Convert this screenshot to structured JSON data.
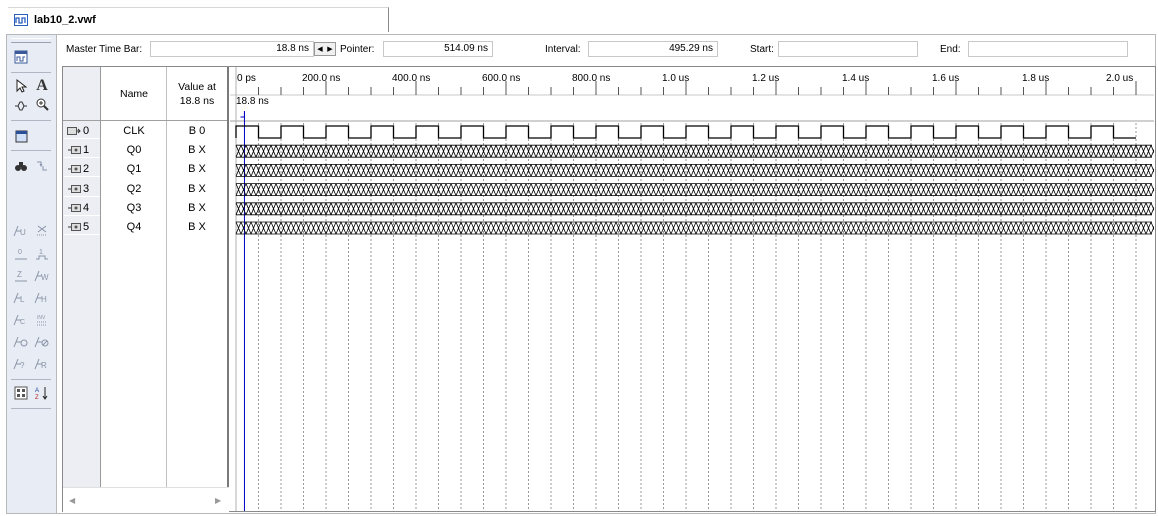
{
  "window": {
    "file_tab": "lab10_2.vwf"
  },
  "header": {
    "master_time_bar_label": "Master Time Bar:",
    "master_time_bar_value": "18.8 ns",
    "pointer_label": "Pointer:",
    "pointer_value": "514.09 ns",
    "interval_label": "Interval:",
    "interval_value": "495.29 ns",
    "start_label": "Start:",
    "start_value": "",
    "end_label": "End:",
    "end_value": ""
  },
  "table": {
    "name_header": "Name",
    "value_header_line1": "Value at",
    "value_header_line2": "18.8 ns",
    "signals": [
      {
        "index": "0",
        "name": "CLK",
        "value": "B 0",
        "kind": "clock-input"
      },
      {
        "index": "1",
        "name": "Q0",
        "value": "B X",
        "kind": "output"
      },
      {
        "index": "2",
        "name": "Q1",
        "value": "B X",
        "kind": "output"
      },
      {
        "index": "3",
        "name": "Q2",
        "value": "B X",
        "kind": "output"
      },
      {
        "index": "4",
        "name": "Q3",
        "value": "B X",
        "kind": "output"
      },
      {
        "index": "5",
        "name": "Q4",
        "value": "B X",
        "kind": "output"
      }
    ]
  },
  "timeline": {
    "ticks": [
      "0 ps",
      "200.0 ns",
      "400.0 ns",
      "600.0 ns",
      "800.0 ns",
      "1.0 us",
      "1.2 us",
      "1.4 us",
      "1.6 us",
      "1.8 us",
      "2.0 us"
    ],
    "master_marker_label": "18.8 ns",
    "master_marker_ns": 18.8,
    "range_ns": [
      0,
      2000
    ],
    "clock_period_ns": 100
  },
  "palette": {
    "tools": [
      "waveform-editor-icon",
      "select-pointer-icon",
      "text-tool-icon",
      "waveform-select-icon",
      "zoom-icon",
      "full-screen-icon",
      "find-icon",
      "replace-icon",
      "uninitialized-icon",
      "dont-care-icon",
      "forcing-low-icon",
      "forcing-high-icon",
      "weak-low-icon",
      "weak-high-icon",
      "weak-unknown-icon",
      "high-impedance-icon",
      "count-value-icon",
      "invert-icon",
      "clock-value-icon",
      "arbitrary-value-icon",
      "random-value-icon",
      "forcing-unknown-icon",
      "group-icon",
      "sort-icon"
    ]
  },
  "colors": {
    "grid_line": "#9a9a9a",
    "marker": "#0000c0",
    "palette_bg": "#e8ecf4"
  }
}
